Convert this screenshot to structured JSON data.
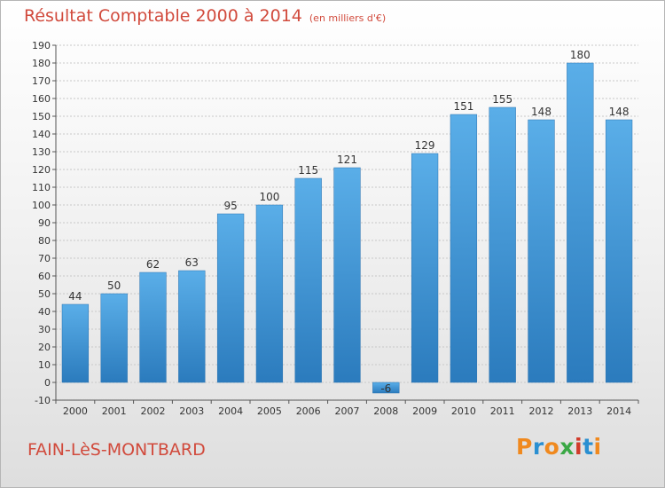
{
  "header": {
    "title": "Résultat Comptable 2000 à 2014",
    "subtitle": "(en milliers d'€)"
  },
  "footer": {
    "place": "FAIN-LèS-MONTBARD",
    "logo": "Proxiti"
  },
  "colors": {
    "title": "#d14a3c",
    "bar_light": "#5aaee8",
    "bar_dark": "#2b7bbd",
    "grid": "#c8c8c8",
    "logo_letters": [
      "#f0891e",
      "#2a8fd1",
      "#f0891e",
      "#3aa845",
      "#d13a2a",
      "#2a8fd1",
      "#f0891e"
    ]
  },
  "chart_data": {
    "type": "bar",
    "title": "Résultat Comptable 2000 à 2014",
    "subtitle": "(en milliers d'€)",
    "categories": [
      "2000",
      "2001",
      "2002",
      "2003",
      "2004",
      "2005",
      "2006",
      "2007",
      "2008",
      "2009",
      "2010",
      "2011",
      "2012",
      "2013",
      "2014"
    ],
    "values": [
      44,
      50,
      62,
      63,
      95,
      100,
      115,
      121,
      -6,
      129,
      151,
      155,
      148,
      180,
      148
    ],
    "data_labels": [
      "44",
      "50",
      "62",
      "63",
      "95",
      "100",
      "115",
      "121",
      "-6",
      "129",
      "151",
      "155",
      "148",
      "180",
      "148"
    ],
    "ylim": [
      -10,
      190
    ],
    "yticks": [
      -10,
      0,
      10,
      20,
      30,
      40,
      50,
      60,
      70,
      80,
      90,
      100,
      110,
      120,
      130,
      140,
      150,
      160,
      170,
      180,
      190
    ],
    "grid": true,
    "legend": "none"
  }
}
